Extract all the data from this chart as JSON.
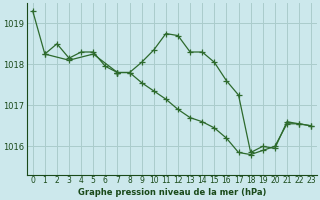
{
  "background_color": "#cce8ec",
  "grid_color": "#aacccc",
  "line_color": "#2d6a2d",
  "marker_color": "#2d6a2d",
  "text_color": "#1a4a1a",
  "xlabel": "Graphe pression niveau de la mer (hPa)",
  "ylim": [
    1015.3,
    1019.5
  ],
  "xlim": [
    -0.5,
    23.5
  ],
  "yticks": [
    1016,
    1017,
    1018,
    1019
  ],
  "xticks": [
    0,
    1,
    2,
    3,
    4,
    5,
    6,
    7,
    8,
    9,
    10,
    11,
    12,
    13,
    14,
    15,
    16,
    17,
    18,
    19,
    20,
    21,
    22,
    23
  ],
  "series": [
    {
      "x": [
        0,
        1,
        2,
        3,
        4,
        5,
        6,
        7
      ],
      "y": [
        1019.3,
        1018.25,
        1018.5,
        1018.15,
        1018.3,
        1018.3,
        1017.95,
        1017.8
      ]
    },
    {
      "x": [
        1,
        3,
        5,
        7
      ],
      "y": [
        1018.25,
        1018.1,
        1018.25,
        1017.8
      ]
    },
    {
      "x": [
        7,
        8,
        9,
        10,
        11,
        12,
        13,
        14,
        15,
        16,
        17,
        18,
        19,
        20,
        21,
        22,
        23
      ],
      "y": [
        1017.8,
        1017.8,
        1018.05,
        1018.35,
        1018.75,
        1018.7,
        1018.3,
        1018.3,
        1018.05,
        1017.6,
        1017.25,
        1015.85,
        1016.0,
        1015.95,
        1016.6,
        1016.55,
        1016.5
      ]
    },
    {
      "x": [
        7,
        8,
        9,
        10,
        11,
        12,
        13,
        14,
        15,
        16,
        17,
        18,
        19,
        20,
        21,
        22,
        23
      ],
      "y": [
        1017.8,
        1017.8,
        1017.55,
        1017.35,
        1017.15,
        1016.9,
        1016.7,
        1016.6,
        1016.45,
        1016.2,
        1015.85,
        1015.8,
        1015.9,
        1016.0,
        1016.55,
        1016.55,
        1016.5
      ]
    }
  ]
}
